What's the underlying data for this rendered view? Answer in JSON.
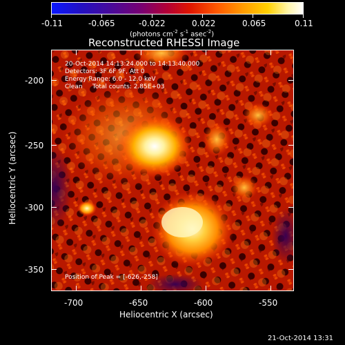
{
  "colorbar": {
    "tick_labels": [
      "-0.11",
      "-0.065",
      "-0.022",
      "0.022",
      "0.065",
      "0.11"
    ],
    "units_prefix": "(photons cm",
    "units_exp1": "-2",
    "units_mid": " s",
    "units_exp2": "-1",
    "units_mid2": " asec",
    "units_exp3": "-2",
    "units_suffix": ")",
    "colors": [
      "#0a18ff",
      "#2b0fb0",
      "#5c0090",
      "#9a0060",
      "#e00e00",
      "#ff6a00",
      "#ffb300",
      "#fff3a0",
      "#ffffff"
    ]
  },
  "plot": {
    "title": "Reconstructed RHESSI Image",
    "annotations": {
      "line1": "20-Oct-2014 14:13:24.000 to 14:13:40.000",
      "line2": "Detectors: 3F 6F 9F, Att 0",
      "line3": "Energy Range: 6.0 - 12.0 keV",
      "line4": "Clean     Total counts: 2.85E+03",
      "peak": "Position of Peak = [-626,-258]"
    },
    "xlabel": "Heliocentric X (arcsec)",
    "ylabel": "Heliocentric Y (arcsec)",
    "x_ticks": [
      "-700",
      "-650",
      "-600",
      "-550"
    ],
    "y_ticks": [
      "-200",
      "-250",
      "-300",
      "-350"
    ]
  },
  "footer": {
    "timestamp": "21-Oct-2014 13:31"
  }
}
